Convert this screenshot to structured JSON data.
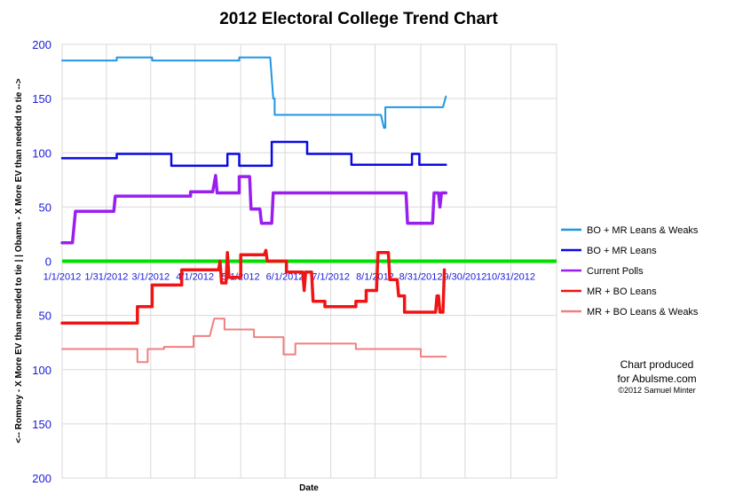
{
  "chart_data": {
    "type": "line",
    "title": "2012 Electoral College Trend Chart",
    "xlabel": "Date",
    "ylabel": "<-- Romney - X More EV than needed to tie | | Obama - X More EV than needed to tie -->",
    "ylim": [
      -200,
      200
    ],
    "y_ticks": [
      {
        "value": 200,
        "label": "200"
      },
      {
        "value": 150,
        "label": "150"
      },
      {
        "value": 100,
        "label": "100"
      },
      {
        "value": 50,
        "label": "50"
      },
      {
        "value": 0,
        "label": "0"
      },
      {
        "value": -50,
        "label": "50"
      },
      {
        "value": -100,
        "label": "100"
      },
      {
        "value": -150,
        "label": "150"
      },
      {
        "value": -200,
        "label": "200"
      }
    ],
    "xlim": [
      "2012-01-01",
      "2012-12-01"
    ],
    "x_ticks": [
      {
        "date": "2012-01-01",
        "label": "1/1/2012"
      },
      {
        "date": "2012-01-31",
        "label": "1/31/2012"
      },
      {
        "date": "2012-03-01",
        "label": "3/1/2012"
      },
      {
        "date": "2012-03-31",
        "label": "4/1/2012"
      },
      {
        "date": "2012-05-01",
        "label": "5/1/2012"
      },
      {
        "date": "2012-05-31",
        "label": "6/1/2012"
      },
      {
        "date": "2012-07-01",
        "label": "7/1/2012"
      },
      {
        "date": "2012-07-31",
        "label": "8/1/2012"
      },
      {
        "date": "2012-08-31",
        "label": "8/31/2012"
      },
      {
        "date": "2012-09-30",
        "label": "9/30/2012"
      },
      {
        "date": "2012-10-31",
        "label": "10/31/2012"
      },
      {
        "date": "2012-12-01",
        "label": ""
      }
    ],
    "grid": true,
    "legend_placement": "right",
    "zero_line_color": "#00e000",
    "series": [
      {
        "name": "BO + MR Leans & Weaks",
        "color": "#1e96e6",
        "width": 2,
        "points": [
          [
            "2012-01-01",
            185
          ],
          [
            "2012-02-07",
            185
          ],
          [
            "2012-02-07",
            188
          ],
          [
            "2012-03-02",
            188
          ],
          [
            "2012-03-02",
            185
          ],
          [
            "2012-04-30",
            185
          ],
          [
            "2012-04-30",
            188
          ],
          [
            "2012-05-21",
            188
          ],
          [
            "2012-05-23",
            150
          ],
          [
            "2012-05-24",
            150
          ],
          [
            "2012-05-24",
            135
          ],
          [
            "2012-08-04",
            135
          ],
          [
            "2012-08-06",
            123
          ],
          [
            "2012-08-07",
            123
          ],
          [
            "2012-08-07",
            142
          ],
          [
            "2012-09-15",
            142
          ],
          [
            "2012-09-17",
            152
          ]
        ]
      },
      {
        "name": "BO + MR Leans",
        "color": "#0a0ae6",
        "width": 2.5,
        "points": [
          [
            "2012-01-01",
            95
          ],
          [
            "2012-02-07",
            95
          ],
          [
            "2012-02-07",
            99
          ],
          [
            "2012-03-15",
            99
          ],
          [
            "2012-03-15",
            88
          ],
          [
            "2012-04-22",
            88
          ],
          [
            "2012-04-22",
            99
          ],
          [
            "2012-04-30",
            99
          ],
          [
            "2012-04-30",
            88
          ],
          [
            "2012-05-22",
            88
          ],
          [
            "2012-05-22",
            110
          ],
          [
            "2012-06-15",
            110
          ],
          [
            "2012-06-15",
            99
          ],
          [
            "2012-07-15",
            99
          ],
          [
            "2012-07-15",
            89
          ],
          [
            "2012-08-25",
            89
          ],
          [
            "2012-08-25",
            99
          ],
          [
            "2012-08-30",
            99
          ],
          [
            "2012-08-30",
            89
          ],
          [
            "2012-09-17",
            89
          ]
        ]
      },
      {
        "name": "Current Polls",
        "color": "#9a1ef0",
        "width": 3.5,
        "points": [
          [
            "2012-01-01",
            17
          ],
          [
            "2012-01-08",
            17
          ],
          [
            "2012-01-10",
            46
          ],
          [
            "2012-02-05",
            46
          ],
          [
            "2012-02-06",
            60
          ],
          [
            "2012-03-28",
            60
          ],
          [
            "2012-03-28",
            64
          ],
          [
            "2012-04-12",
            64
          ],
          [
            "2012-04-14",
            79
          ],
          [
            "2012-04-15",
            63
          ],
          [
            "2012-04-30",
            63
          ],
          [
            "2012-04-30",
            78
          ],
          [
            "2012-05-07",
            78
          ],
          [
            "2012-05-08",
            48
          ],
          [
            "2012-05-14",
            48
          ],
          [
            "2012-05-15",
            35
          ],
          [
            "2012-05-22",
            35
          ],
          [
            "2012-05-23",
            63
          ],
          [
            "2012-08-21",
            63
          ],
          [
            "2012-08-22",
            35
          ],
          [
            "2012-09-08",
            35
          ],
          [
            "2012-09-09",
            63
          ],
          [
            "2012-09-12",
            63
          ],
          [
            "2012-09-13",
            50
          ],
          [
            "2012-09-14",
            63
          ],
          [
            "2012-09-17",
            63
          ]
        ]
      },
      {
        "name": "MR + BO Leans",
        "color": "#f01414",
        "width": 3.5,
        "points": [
          [
            "2012-01-01",
            -57
          ],
          [
            "2012-02-21",
            -57
          ],
          [
            "2012-02-21",
            -42
          ],
          [
            "2012-03-02",
            -42
          ],
          [
            "2012-03-02",
            -22
          ],
          [
            "2012-03-22",
            -22
          ],
          [
            "2012-03-22",
            -8
          ],
          [
            "2012-04-16",
            -8
          ],
          [
            "2012-04-17",
            0
          ],
          [
            "2012-04-18",
            -20
          ],
          [
            "2012-04-21",
            -20
          ],
          [
            "2012-04-22",
            8
          ],
          [
            "2012-04-23",
            -15
          ],
          [
            "2012-05-01",
            -15
          ],
          [
            "2012-05-01",
            6
          ],
          [
            "2012-05-17",
            6
          ],
          [
            "2012-05-18",
            10
          ],
          [
            "2012-05-19",
            0
          ],
          [
            "2012-06-01",
            0
          ],
          [
            "2012-06-01",
            -10
          ],
          [
            "2012-06-12",
            -10
          ],
          [
            "2012-06-13",
            -27
          ],
          [
            "2012-06-14",
            -10
          ],
          [
            "2012-06-18",
            -10
          ],
          [
            "2012-06-19",
            -37
          ],
          [
            "2012-06-27",
            -37
          ],
          [
            "2012-06-27",
            -42
          ],
          [
            "2012-07-18",
            -42
          ],
          [
            "2012-07-18",
            -37
          ],
          [
            "2012-07-25",
            -37
          ],
          [
            "2012-07-25",
            -27
          ],
          [
            "2012-08-01",
            -27
          ],
          [
            "2012-08-02",
            8
          ],
          [
            "2012-08-09",
            8
          ],
          [
            "2012-08-10",
            -17
          ],
          [
            "2012-08-15",
            -17
          ],
          [
            "2012-08-16",
            -32
          ],
          [
            "2012-08-20",
            -32
          ],
          [
            "2012-08-20",
            -47
          ],
          [
            "2012-09-10",
            -47
          ],
          [
            "2012-09-11",
            -32
          ],
          [
            "2012-09-12",
            -32
          ],
          [
            "2012-09-13",
            -47
          ],
          [
            "2012-09-15",
            -47
          ],
          [
            "2012-09-16",
            -8
          ]
        ]
      },
      {
        "name": "MR + BO Leans & Weaks",
        "color": "#f08080",
        "width": 2,
        "points": [
          [
            "2012-01-01",
            -81
          ],
          [
            "2012-02-21",
            -81
          ],
          [
            "2012-02-21",
            -93
          ],
          [
            "2012-02-28",
            -93
          ],
          [
            "2012-02-28",
            -81
          ],
          [
            "2012-03-10",
            -81
          ],
          [
            "2012-03-10",
            -79
          ],
          [
            "2012-03-30",
            -79
          ],
          [
            "2012-03-30",
            -69
          ],
          [
            "2012-04-10",
            -69
          ],
          [
            "2012-04-13",
            -53
          ],
          [
            "2012-04-20",
            -53
          ],
          [
            "2012-04-20",
            -63
          ],
          [
            "2012-05-10",
            -63
          ],
          [
            "2012-05-10",
            -70
          ],
          [
            "2012-05-30",
            -70
          ],
          [
            "2012-05-30",
            -86
          ],
          [
            "2012-06-07",
            -86
          ],
          [
            "2012-06-07",
            -76
          ],
          [
            "2012-07-18",
            -76
          ],
          [
            "2012-07-18",
            -81
          ],
          [
            "2012-08-31",
            -81
          ],
          [
            "2012-08-31",
            -88
          ],
          [
            "2012-09-17",
            -88
          ]
        ]
      }
    ]
  },
  "credit": {
    "line1": "Chart produced",
    "line2": "for Abulsme.com",
    "line3": "©2012 Samuel Minter"
  }
}
